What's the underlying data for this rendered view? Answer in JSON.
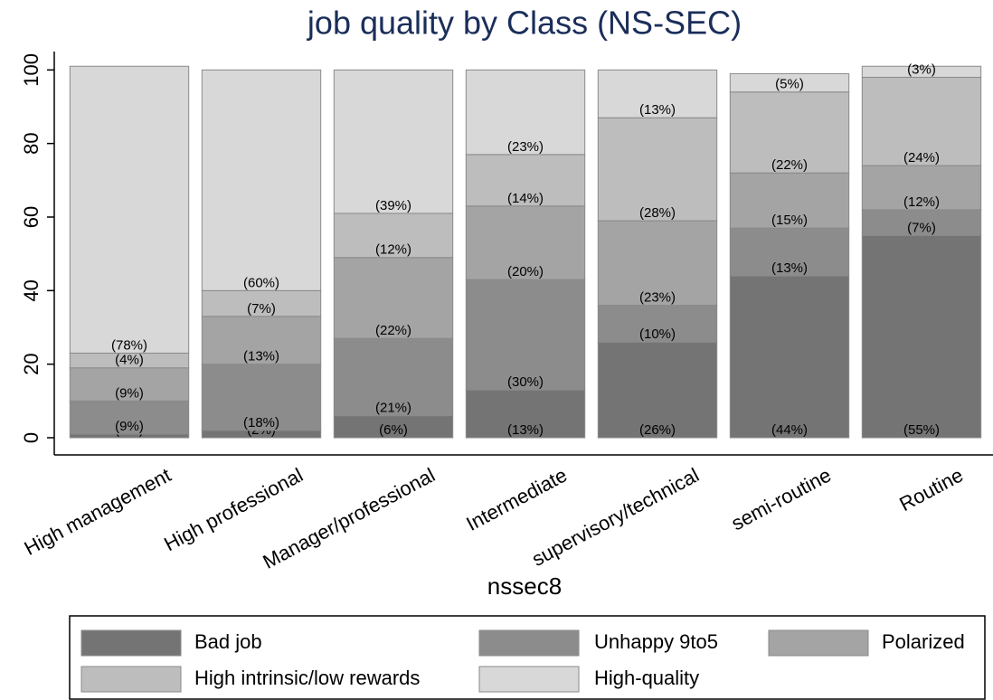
{
  "chart_data": {
    "type": "stacked_bar",
    "title": "job quality by Class (NS-SEC)",
    "x_label": "nssec8",
    "categories": [
      "High management",
      "High professional",
      "Manager/professional",
      "Intermediate",
      "supervisory/technical",
      "semi-routine",
      "Routine"
    ],
    "series": [
      {
        "name": "Bad job",
        "color": "#747474",
        "values": [
          1,
          2,
          6,
          13,
          26,
          44,
          55
        ],
        "value_labels": [
          "(1%)",
          "(2%)",
          "(6%)",
          "(13%)",
          "(26%)",
          "(44%)",
          "(55%)"
        ]
      },
      {
        "name": "Unhappy 9to5",
        "color": "#8c8c8c",
        "values": [
          9,
          18,
          21,
          30,
          10,
          13,
          7
        ],
        "value_labels": [
          "(9%)",
          "(18%)",
          "(21%)",
          "(30%)",
          "(10%)",
          "(13%)",
          "(7%)"
        ]
      },
      {
        "name": "Polarized",
        "color": "#a4a4a4",
        "values": [
          9,
          13,
          22,
          20,
          23,
          15,
          12
        ],
        "value_labels": [
          "(9%)",
          "(13%)",
          "(22%)",
          "(20%)",
          "(23%)",
          "(15%)",
          "(12%)"
        ]
      },
      {
        "name": "High intrinsic/low rewards",
        "color": "#bdbdbd",
        "values": [
          4,
          7,
          12,
          14,
          28,
          22,
          24
        ],
        "value_labels": [
          "(4%)",
          "(7%)",
          "(12%)",
          "(14%)",
          "(28%)",
          "(22%)",
          "(24%)"
        ]
      },
      {
        "name": "High-quality",
        "color": "#d8d8d8",
        "values": [
          78,
          60,
          39,
          23,
          13,
          5,
          3
        ],
        "value_labels": [
          "(78%)",
          "(60%)",
          "(39%)",
          "(23%)",
          "(13%)",
          "(5%)",
          "(3%)"
        ]
      }
    ],
    "ylim": [
      0,
      105
    ],
    "yticks": [
      0,
      20,
      40,
      60,
      80,
      100
    ],
    "grid": false
  }
}
